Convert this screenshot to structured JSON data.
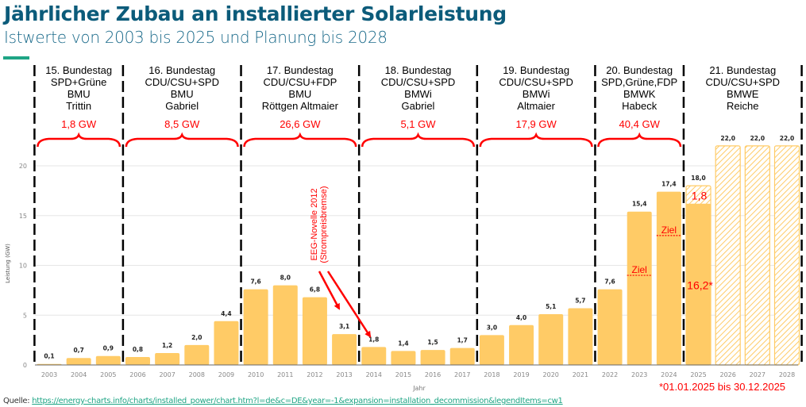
{
  "header": {
    "title": "Jährlicher Zubau an installierter Solarleistung",
    "subtitle": "Istwerte von 2003 bis 2025 und Planung bis 2028"
  },
  "source": {
    "label": "Quelle:",
    "link_text": "https://energy-charts.info/charts/installed_power/chart.htm?l=de&c=DE&year=-1&expansion=installation_decommission&legendItems=cw1"
  },
  "footnote": "*01.01.2025 bis 30.12.2025",
  "colors": {
    "bar": "#ffcb66",
    "hatch": "#ffcb66",
    "annotation": "#ff0000",
    "title": "#0b5b7a",
    "accent": "#1fa585"
  },
  "legislatures": [
    {
      "lines": [
        "15. Bundestag",
        "SPD+Grüne",
        "BMU",
        "Trittin"
      ],
      "total": "1,8 GW",
      "from": "2003",
      "to": "2005"
    },
    {
      "lines": [
        "16. Bundestag",
        "CDU/CSU+SPD",
        "BMU",
        "Gabriel"
      ],
      "total": "8,5 GW",
      "from": "2006",
      "to": "2009"
    },
    {
      "lines": [
        "17. Bundestag",
        "CDU/CSU+FDP",
        "BMU",
        "Röttgen    Altmaier"
      ],
      "total": "26,6 GW",
      "from": "2010",
      "to": "2013"
    },
    {
      "lines": [
        "18. Bundestag",
        "CDU/CSU+SPD",
        "BMWi",
        "Gabriel"
      ],
      "total": "5,1 GW",
      "from": "2014",
      "to": "2017"
    },
    {
      "lines": [
        "19. Bundestag",
        "CDU/CSU+SPD",
        "BMWi",
        "Altmaier"
      ],
      "total": "17,9 GW",
      "from": "2018",
      "to": "2021"
    },
    {
      "lines": [
        "20. Bundestag",
        "SPD,Grüne,FDP",
        "BMWK",
        "Habeck"
      ],
      "total": "40,4 GW",
      "from": "2022",
      "to": "2024"
    },
    {
      "lines": [
        "21. Bundestag",
        "CDU/CSU+SPD",
        "BMWE",
        "Reiche"
      ],
      "total": "",
      "from": "2025",
      "to": "2028"
    }
  ],
  "annotations": {
    "eeg_line1": "EEG-Novelle 2012",
    "eeg_line2": "(Strompreisbremse)",
    "ziel_label": "Ziel",
    "ziel_targets": [
      {
        "year": "2023",
        "value": 9.0
      },
      {
        "year": "2024",
        "value": 13.0
      }
    ],
    "partial_2025_actual": "16,2*",
    "partial_2025_remaining": "1,8"
  },
  "chart_data": {
    "type": "bar",
    "title": "Jährlicher Zubau an installierter Solarleistung",
    "xlabel": "Jahr",
    "ylabel": "Leistung (GW)",
    "ylim": [
      0,
      22
    ],
    "yticks": [
      0,
      5,
      10,
      15,
      20
    ],
    "grid": true,
    "categories": [
      "2003",
      "2004",
      "2005",
      "2006",
      "2007",
      "2008",
      "2009",
      "2010",
      "2011",
      "2012",
      "2013",
      "2014",
      "2015",
      "2016",
      "2017",
      "2018",
      "2019",
      "2020",
      "2021",
      "2022",
      "2023",
      "2024",
      "2025",
      "2026",
      "2027",
      "2028"
    ],
    "series": [
      {
        "name": "Istwerte",
        "values": [
          0.1,
          0.7,
          0.9,
          0.8,
          1.2,
          2.0,
          4.4,
          7.6,
          8.0,
          6.8,
          3.1,
          1.8,
          1.4,
          1.5,
          1.7,
          3.0,
          4.0,
          5.1,
          5.7,
          7.6,
          15.4,
          17.4,
          16.2,
          null,
          null,
          null
        ]
      },
      {
        "name": "Planung",
        "values": [
          null,
          null,
          null,
          null,
          null,
          null,
          null,
          null,
          null,
          null,
          null,
          null,
          null,
          null,
          null,
          null,
          null,
          null,
          null,
          null,
          null,
          null,
          18.0,
          22.0,
          22.0,
          22.0
        ]
      }
    ],
    "value_labels": [
      "0,1",
      "0,7",
      "0,9",
      "0,8",
      "1,2",
      "2,0",
      "4,4",
      "7,6",
      "8,0",
      "6,8",
      "3,1",
      "1,8",
      "1,4",
      "1,5",
      "1,7",
      "3,0",
      "4,0",
      "5,1",
      "5,7",
      "7,6",
      "15,4",
      "17,4",
      "18,0",
      "22,0",
      "22,0",
      "22,0"
    ]
  }
}
